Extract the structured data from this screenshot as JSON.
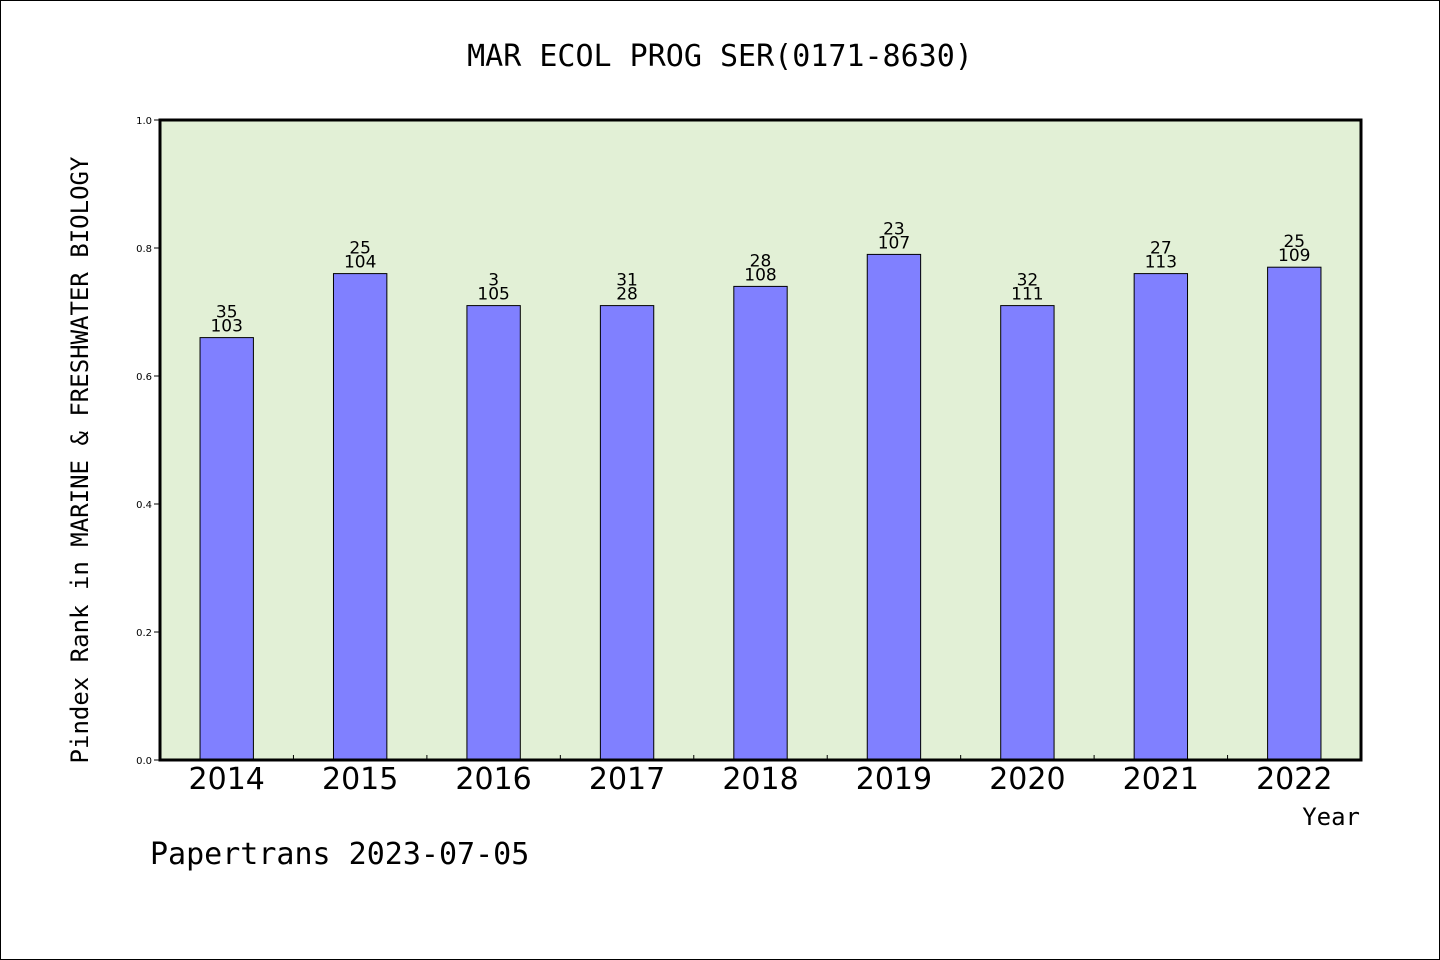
{
  "chart_data": {
    "type": "bar",
    "title": "MAR ECOL PROG SER(0171-8630)",
    "xlabel": "Year",
    "ylabel": "Pindex Rank in MARINE & FRESHWATER BIOLOGY",
    "categories": [
      "2014",
      "2015",
      "2016",
      "2017",
      "2018",
      "2019",
      "2020",
      "2021",
      "2022"
    ],
    "values": [
      0.66,
      0.76,
      0.71,
      0.71,
      0.74,
      0.79,
      0.71,
      0.76,
      0.77
    ],
    "labels_top": [
      "35",
      "25",
      "3",
      "31",
      "28",
      "23",
      "32",
      "27",
      "25"
    ],
    "labels_bottom": [
      "103",
      "104",
      "105",
      "28",
      "108",
      "107",
      "111",
      "113",
      "109"
    ],
    "ylim": [
      0,
      1.0
    ],
    "yticks": [
      "0.0",
      "0.2",
      "0.4",
      "0.6",
      "0.8",
      "1.0"
    ],
    "grid": false,
    "colors": {
      "plot_bg": "#e2f0d6",
      "bar": "#8080ff",
      "bar_edge": "#000000"
    }
  },
  "credit": "Papertrans 2023-07-05"
}
